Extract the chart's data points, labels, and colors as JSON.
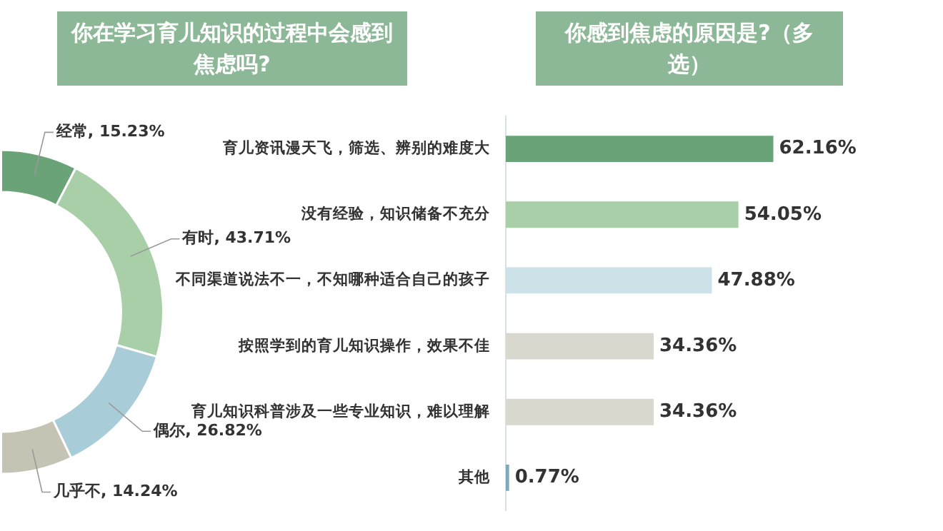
{
  "chart_data": [
    {
      "type": "donut",
      "title": "你在学习育儿知识的过程中会感到焦虑吗?",
      "categories": [
        "经常",
        "有时",
        "偶尔",
        "几乎不"
      ],
      "values": [
        15.23,
        43.71,
        26.82,
        14.24
      ],
      "colors": [
        "#6aa378",
        "#a9cfa9",
        "#a9cdd8",
        "#c5c3b4"
      ],
      "value_labels": [
        "15.23%",
        "43.71%",
        "26.82%",
        "14.24%"
      ],
      "legend": false
    },
    {
      "type": "bar",
      "orientation": "horizontal",
      "title": "你感到焦虑的原因是?（多选）",
      "categories": [
        "育儿资讯漫天飞，筛选、辨别的难度大",
        "没有经验，知识储备不充分",
        "不同渠道说法不一，不知哪种适合自己的孩子",
        "按照学到的育儿知识操作，效果不佳",
        "育儿知识科普涉及一些专业知识，难以理解",
        "其他"
      ],
      "values": [
        62.16,
        54.05,
        47.88,
        34.36,
        34.36,
        0.77
      ],
      "colors": [
        "#6aa378",
        "#a9cfa9",
        "#cde2e8",
        "#d9d8cf",
        "#d9d8cf",
        "#7fa9b8"
      ],
      "value_labels": [
        "62.16%",
        "54.05%",
        "47.88%",
        "34.36%",
        "34.36%",
        "0.77%"
      ],
      "tick_labels": "y",
      "legend": false
    }
  ]
}
